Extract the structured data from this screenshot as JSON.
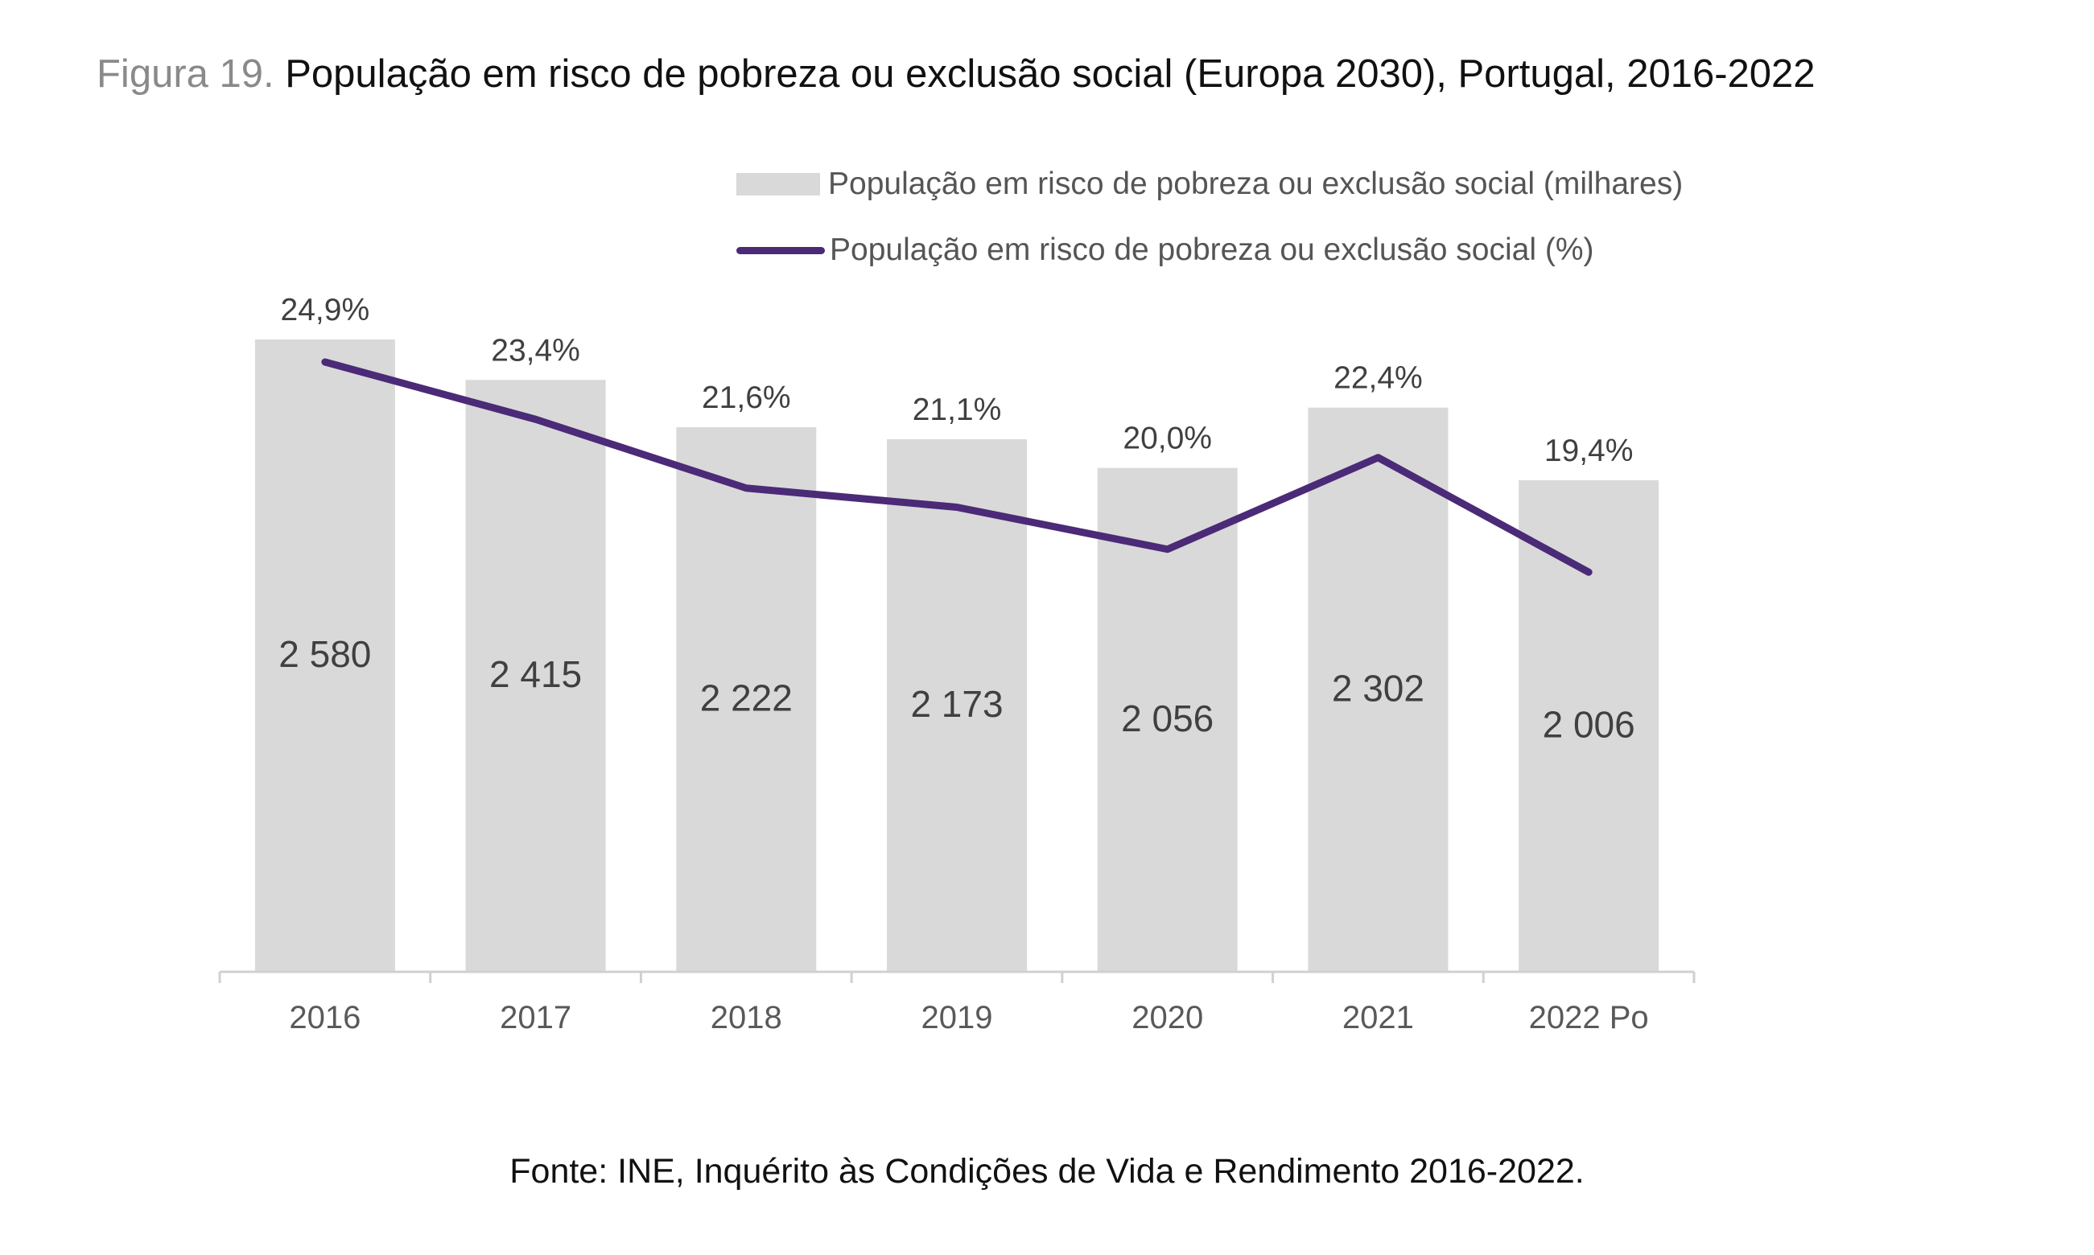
{
  "title": {
    "prefix": "Figura 19.",
    "text": "População em risco de pobreza ou exclusão social (Europa 2030), Portugal, 2016-2022"
  },
  "legend": {
    "bar_label": "População em risco de pobreza ou exclusão social (milhares)",
    "line_label": "População em risco de pobreza ou exclusão social (%)"
  },
  "colors": {
    "bar": "#d9d9d9",
    "line": "#4b2a77",
    "axis": "#d0d0d0",
    "text": "#404040"
  },
  "source": "Fonte: INE, Inquérito às Condições de Vida e Rendimento 2016-2022.",
  "chart_data": {
    "type": "bar",
    "combo": "bar+line",
    "categories": [
      "2016",
      "2017",
      "2018",
      "2019",
      "2020",
      "2021",
      "2022 Po"
    ],
    "series": [
      {
        "name": "População em risco de pobreza ou exclusão social (milhares)",
        "type": "bar",
        "values": [
          2580,
          2415,
          2222,
          2173,
          2056,
          2302,
          2006
        ],
        "labels": [
          "2 580",
          "2 415",
          "2 222",
          "2 173",
          "2 056",
          "2 302",
          "2 006"
        ]
      },
      {
        "name": "População em risco de pobreza ou exclusão social (%)",
        "type": "line",
        "values": [
          24.9,
          23.4,
          21.6,
          21.1,
          20.0,
          22.4,
          19.4
        ],
        "labels": [
          "24,9%",
          "23,4%",
          "21,6%",
          "21,1%",
          "20,0%",
          "22,4%",
          "19,4%"
        ]
      }
    ],
    "legend_position": "top-right",
    "grid": false
  }
}
